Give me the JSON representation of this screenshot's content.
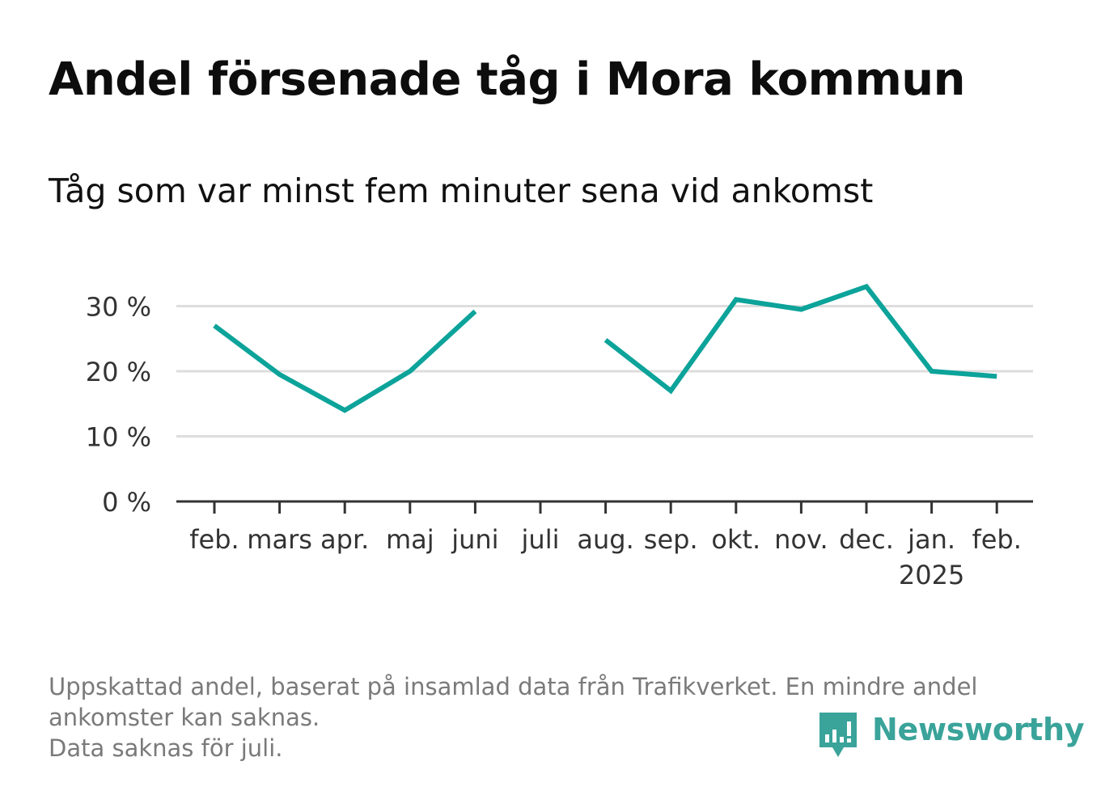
{
  "title": "Andel försenade tåg i Mora kommun",
  "subtitle": "Tåg som var minst fem minuter sena vid ankomst",
  "footnote": [
    "Uppskattad andel, baserat på insamlad data från Trafikverket. En mindre andel",
    "ankomster kan saknas.",
    "Data saknas för juli."
  ],
  "brand": {
    "name": "Newsworthy",
    "icon": "bar-chart-speech-bubble-icon",
    "color": "#3aa39a"
  },
  "colors": {
    "line": "#0ca39a",
    "grid": "#dddddd",
    "axis": "#333333",
    "text": "#333333"
  },
  "chart_data": {
    "type": "line",
    "categories": [
      "feb.",
      "mars",
      "apr.",
      "maj",
      "juni",
      "juli",
      "aug.",
      "sep.",
      "okt.",
      "nov.",
      "dec.",
      "jan.",
      "feb."
    ],
    "year_label": {
      "category_index": 11,
      "text": "2025"
    },
    "series": [
      {
        "values": [
          27,
          19.5,
          14,
          20,
          29.2,
          null,
          24.8,
          17,
          31,
          29.5,
          33,
          20,
          19.2
        ]
      }
    ],
    "ylim": [
      0,
      30
    ],
    "yticks": [
      0,
      10,
      20,
      30
    ],
    "ytick_labels": [
      "0 %",
      "10 %",
      "20 %",
      "30 %"
    ],
    "xlabel": "",
    "ylabel": "",
    "grid": true,
    "missing": "juli"
  }
}
